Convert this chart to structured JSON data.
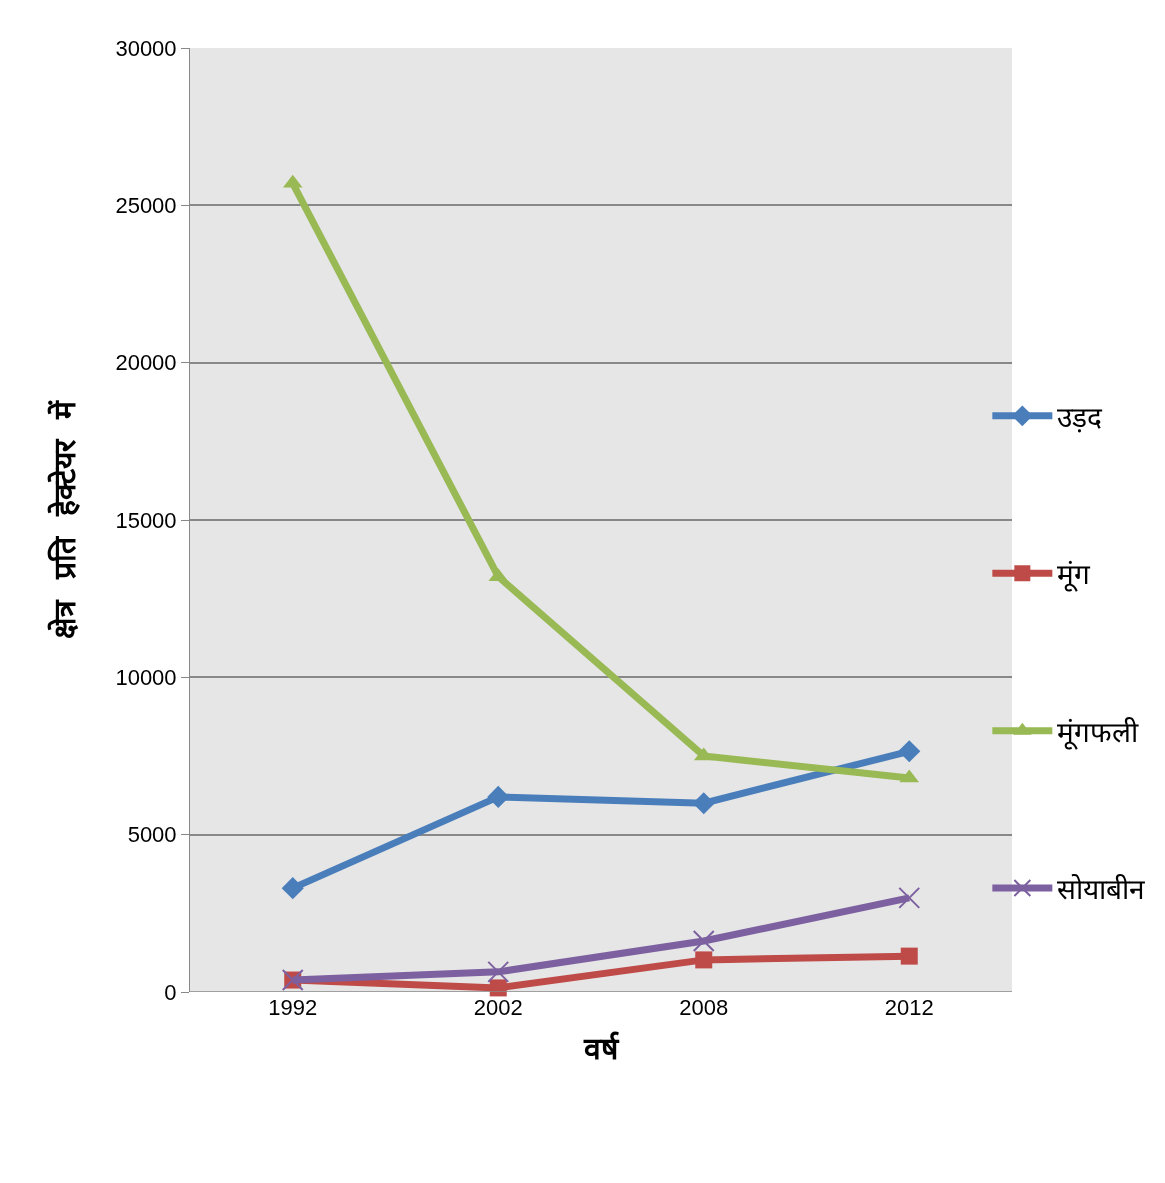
{
  "chart_data": {
    "type": "line",
    "xlabel": "वर्ष",
    "ylabel": "क्षेत्र  प्रति  हेक्टेयर  में",
    "categories": [
      "1992",
      "2002",
      "2008",
      "2012"
    ],
    "series": [
      {
        "name": "उड़द",
        "color": "#4a7ebb",
        "marker": "diamond",
        "values": [
          3300,
          6200,
          6000,
          7650
        ]
      },
      {
        "name": "मूंग",
        "color": "#be4b48",
        "marker": "square",
        "values": [
          380,
          130,
          1020,
          1140
        ]
      },
      {
        "name": "मूंगफली",
        "color": "#98b954",
        "marker": "triangle",
        "values": [
          25700,
          13200,
          7500,
          6800
        ]
      },
      {
        "name": "सोयाबीन",
        "color": "#7d60a0",
        "marker": "cross",
        "values": [
          380,
          640,
          1620,
          2990
        ]
      }
    ],
    "ylim": [
      0,
      30000
    ],
    "yticks": [
      0,
      5000,
      10000,
      15000,
      20000,
      25000,
      30000
    ],
    "grid": "y",
    "legend": "right",
    "line_style": "solid"
  }
}
